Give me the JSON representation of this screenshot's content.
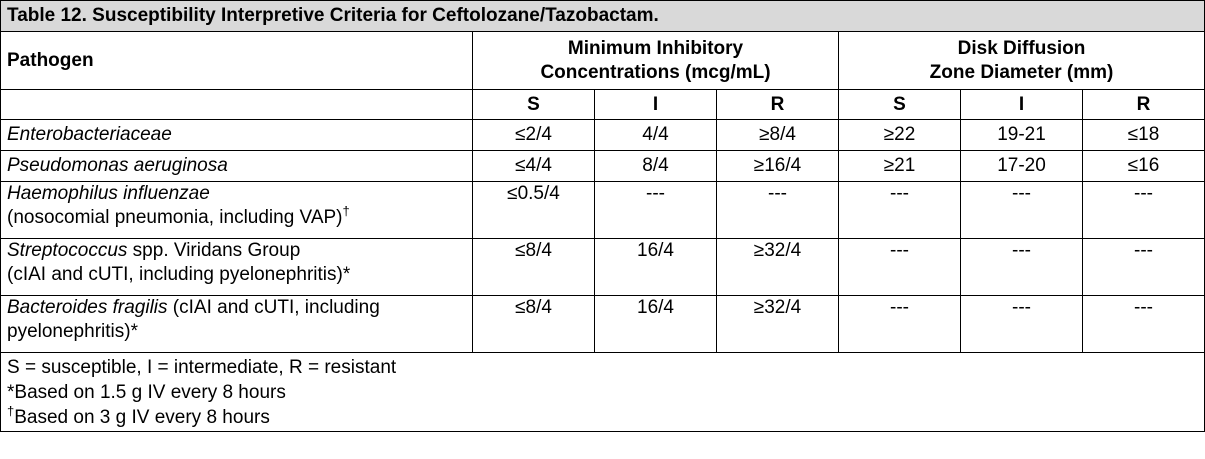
{
  "title": "Table 12. Susceptibility Interpretive Criteria for Ceftolozane/Tazobactam.",
  "header": {
    "pathogen": "Pathogen",
    "mic_line1": "Minimum Inhibitory",
    "mic_line2": "Concentrations (mcg/mL)",
    "disk_line1": "Disk Diffusion",
    "disk_line2": "Zone Diameter (mm)",
    "sir": [
      "S",
      "I",
      "R",
      "S",
      "I",
      "R"
    ]
  },
  "rows": [
    {
      "name_italic": "Enterobacteriaceae",
      "name_rest": "",
      "values": [
        "≤2/4",
        "4/4",
        "≥8/4",
        "≥22",
        "19-21",
        "≤18"
      ]
    },
    {
      "name_italic": "Pseudomonas aeruginosa",
      "name_rest": "",
      "values": [
        "≤4/4",
        "8/4",
        "≥16/4",
        "≥21",
        "17-20",
        "≤16"
      ]
    },
    {
      "name_italic": "Haemophilus influenzae",
      "name_rest": "(nosocomial pneumonia, including VAP)",
      "mark": "†",
      "values": [
        "≤0.5/4",
        "---",
        "---",
        "---",
        "---",
        "---"
      ]
    },
    {
      "name_italic": "Streptococcus",
      "name_mid": " spp. Viridans Group",
      "name_rest": "(cIAI and cUTI, including pyelonephritis)*",
      "values": [
        "≤8/4",
        "16/4",
        "≥32/4",
        "---",
        "---",
        "---"
      ]
    },
    {
      "name_italic": "Bacteroides fragilis",
      "name_mid": " (cIAI and cUTI, including",
      "name_rest": "pyelonephritis)*",
      "values": [
        "≤8/4",
        "16/4",
        "≥32/4",
        "---",
        "---",
        "---"
      ]
    }
  ],
  "footnotes": {
    "line1": "S = susceptible, I = intermediate, R = resistant",
    "line2": "*Based on 1.5 g IV every 8 hours",
    "line3_mark": "†",
    "line3": "Based on 3 g IV every 8 hours"
  }
}
